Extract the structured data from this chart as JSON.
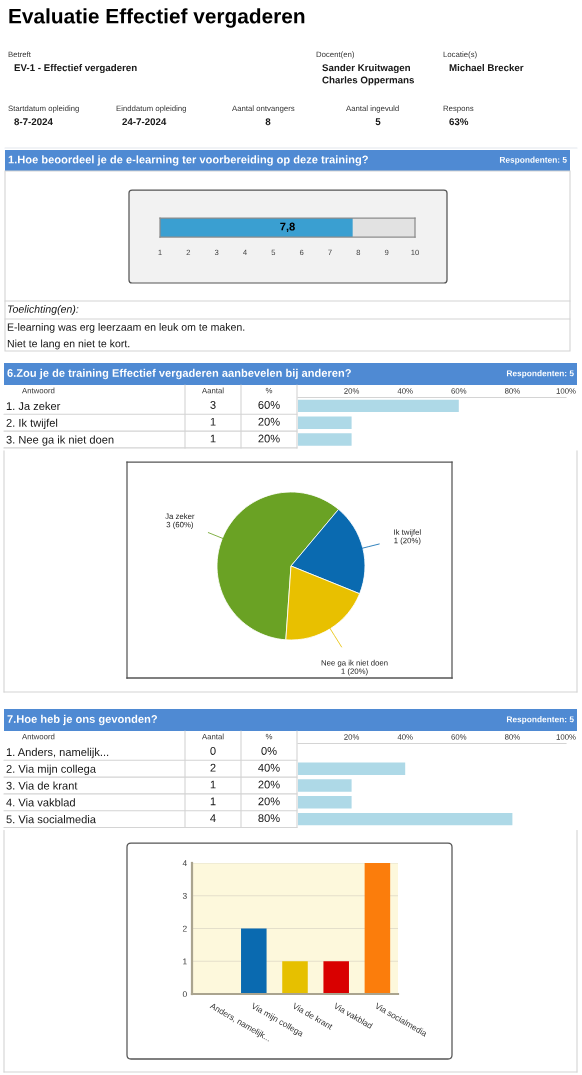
{
  "chart_data": [
    {
      "type": "other",
      "title": "Evaluatie Effectief vergaderen",
      "annotations": [
        "Betreft",
        "EV-1 - Effectief vergaderen",
        "Docent(en)",
        "Sander Kruitwagen\nCharles Oppermans",
        "Locatie(s)",
        "Michael Brecker",
        "Startdatum opleiding",
        "8-7-2024",
        "Einddatum opleiding",
        "24-7-2024",
        "Aantal ontvangers",
        "8",
        "Aantal ingevuld",
        "5",
        "Respons",
        "63%"
      ]
    },
    {
      "type": "bar",
      "orientation": "horizontal",
      "title": "1.Hoe beoordeel je de e-learning ter voorbereiding op deze training?",
      "categories": [
        null
      ],
      "values": [
        7.8
      ],
      "value_labels": [
        "7,8"
      ],
      "color": "#3a9fd1",
      "xlim": [
        1,
        10
      ],
      "xticks": [
        1,
        2,
        3,
        4,
        5,
        6,
        7,
        8,
        9,
        10
      ],
      "annotations": [
        "Respondenten: 5",
        "Toelichting(en):",
        "E-learning was erg leerzaam en leuk om te maken.",
        "Niet te lang en niet te kort."
      ]
    },
    {
      "type": "bar",
      "orientation": "horizontal",
      "title": "6.Zou je de training Effectief vergaderen aanbevelen bij anderen?",
      "subtitle": "Respondenten: 5",
      "ylabel": "Antwoord",
      "categories": [
        "1. Ja zeker",
        "2. Ik twijfel",
        "3. Nee ga ik niet doen"
      ],
      "values": [
        60,
        20,
        20
      ],
      "value_labels": [
        "60%",
        "20%",
        "20%"
      ],
      "color": "#aed9e7",
      "xlim": [
        0,
        100
      ],
      "x2lim": [
        0,
        100
      ],
      "x2ticks": [
        {
          "value": 20,
          "label": "20%"
        },
        {
          "value": 40,
          "label": "40%"
        },
        {
          "value": 60,
          "label": "60%"
        },
        {
          "value": 80,
          "label": "80%"
        },
        {
          "value": 100,
          "label": "100%"
        }
      ],
      "annotations": [
        "Aantal",
        "%",
        "3",
        "1",
        "1"
      ]
    },
    {
      "type": "pie",
      "categories": [
        "Ja zeker",
        "Ik twijfel",
        "Nee ga ik niet doen"
      ],
      "values": [
        3,
        1,
        1
      ],
      "value_labels": [
        "3 (60%)",
        "1 (20%)",
        "1 (20%)"
      ],
      "colors": [
        "#6aa224",
        "#0a6ab0",
        "#e8c000"
      ]
    },
    {
      "type": "bar",
      "orientation": "horizontal",
      "title": "7.Hoe heb je ons gevonden?",
      "subtitle": "Respondenten: 5",
      "ylabel": "Antwoord",
      "categories": [
        "1. Anders, namelijk...",
        "2. Via mijn collega",
        "3. Via de krant",
        "4. Via vakblad",
        "5. Via socialmedia"
      ],
      "values": [
        0,
        40,
        20,
        20,
        80
      ],
      "value_labels": [
        "0%",
        "40%",
        "20%",
        "20%",
        "80%"
      ],
      "color": "#aed9e7",
      "xlim": [
        0,
        100
      ],
      "x2lim": [
        0,
        100
      ],
      "x2ticks": [
        {
          "value": 20,
          "label": "20%"
        },
        {
          "value": 40,
          "label": "40%"
        },
        {
          "value": 60,
          "label": "60%"
        },
        {
          "value": 80,
          "label": "80%"
        },
        {
          "value": 100,
          "label": "100%"
        }
      ],
      "annotations": [
        "Aantal",
        "%",
        "0",
        "2",
        "1",
        "1",
        "4"
      ]
    },
    {
      "type": "bar",
      "categories": [
        "Anders, namelijk...",
        "Via mijn collega",
        "Via de krant",
        "Via vakblad",
        "Via socialmedia"
      ],
      "values": [
        0,
        2,
        1,
        1,
        4
      ],
      "colors": [
        "#4f7f1c",
        "#0a6ab0",
        "#e6c000",
        "#d90000",
        "#fb7d0c"
      ],
      "ylim": [
        0,
        4
      ],
      "yticks": [
        0,
        1,
        2,
        3,
        4
      ],
      "grid": "y"
    }
  ]
}
